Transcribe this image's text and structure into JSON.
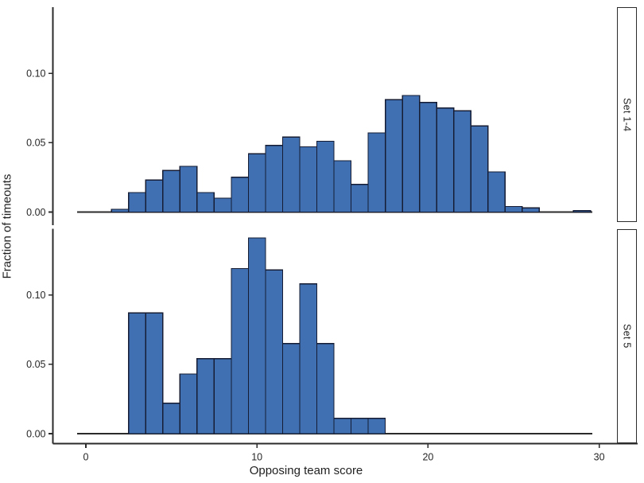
{
  "chart_data": {
    "type": "bar",
    "subtype": "faceted-histogram",
    "title": "",
    "xlabel": "Opposing team score",
    "ylabel": "Fraction of timeouts",
    "bin_width": 1,
    "xlim": [
      -0.6,
      31
    ],
    "ylim_per_panel": [
      0,
      0.148
    ],
    "grid": "off",
    "legend": "none",
    "x_ticks": [
      {
        "value": 0,
        "label": "0"
      },
      {
        "value": 10,
        "label": "10"
      },
      {
        "value": 20,
        "label": "20"
      },
      {
        "value": 30,
        "label": "30"
      }
    ],
    "y_ticks": [
      {
        "value": 0.0,
        "label": "0.00"
      },
      {
        "value": 0.05,
        "label": "0.05"
      },
      {
        "value": 0.1,
        "label": "0.10"
      }
    ],
    "colors": {
      "bar_fill": "#4070b2",
      "bar_stroke": "#151c33",
      "axis": "#2b2b2b",
      "text": "#262626",
      "background": "#ffffff"
    },
    "facets": [
      {
        "label": "Set 1-4",
        "bins_x_center": [
          2,
          3,
          4,
          5,
          6,
          7,
          8,
          9,
          10,
          11,
          12,
          13,
          14,
          15,
          16,
          17,
          18,
          19,
          20,
          21,
          22,
          23,
          24,
          25,
          26,
          29
        ],
        "fractions": [
          0.002,
          0.014,
          0.023,
          0.03,
          0.033,
          0.014,
          0.01,
          0.025,
          0.042,
          0.048,
          0.054,
          0.047,
          0.051,
          0.037,
          0.02,
          0.057,
          0.081,
          0.084,
          0.079,
          0.075,
          0.073,
          0.062,
          0.029,
          0.004,
          0.003,
          0.001
        ]
      },
      {
        "label": "Set 5",
        "bins_x_center": [
          3,
          4,
          5,
          6,
          7,
          8,
          9,
          10,
          11,
          12,
          13,
          14,
          15,
          16,
          17
        ],
        "fractions": [
          0.087,
          0.087,
          0.022,
          0.043,
          0.054,
          0.054,
          0.119,
          0.141,
          0.118,
          0.065,
          0.108,
          0.065,
          0.011,
          0.011,
          0.011
        ]
      }
    ]
  }
}
